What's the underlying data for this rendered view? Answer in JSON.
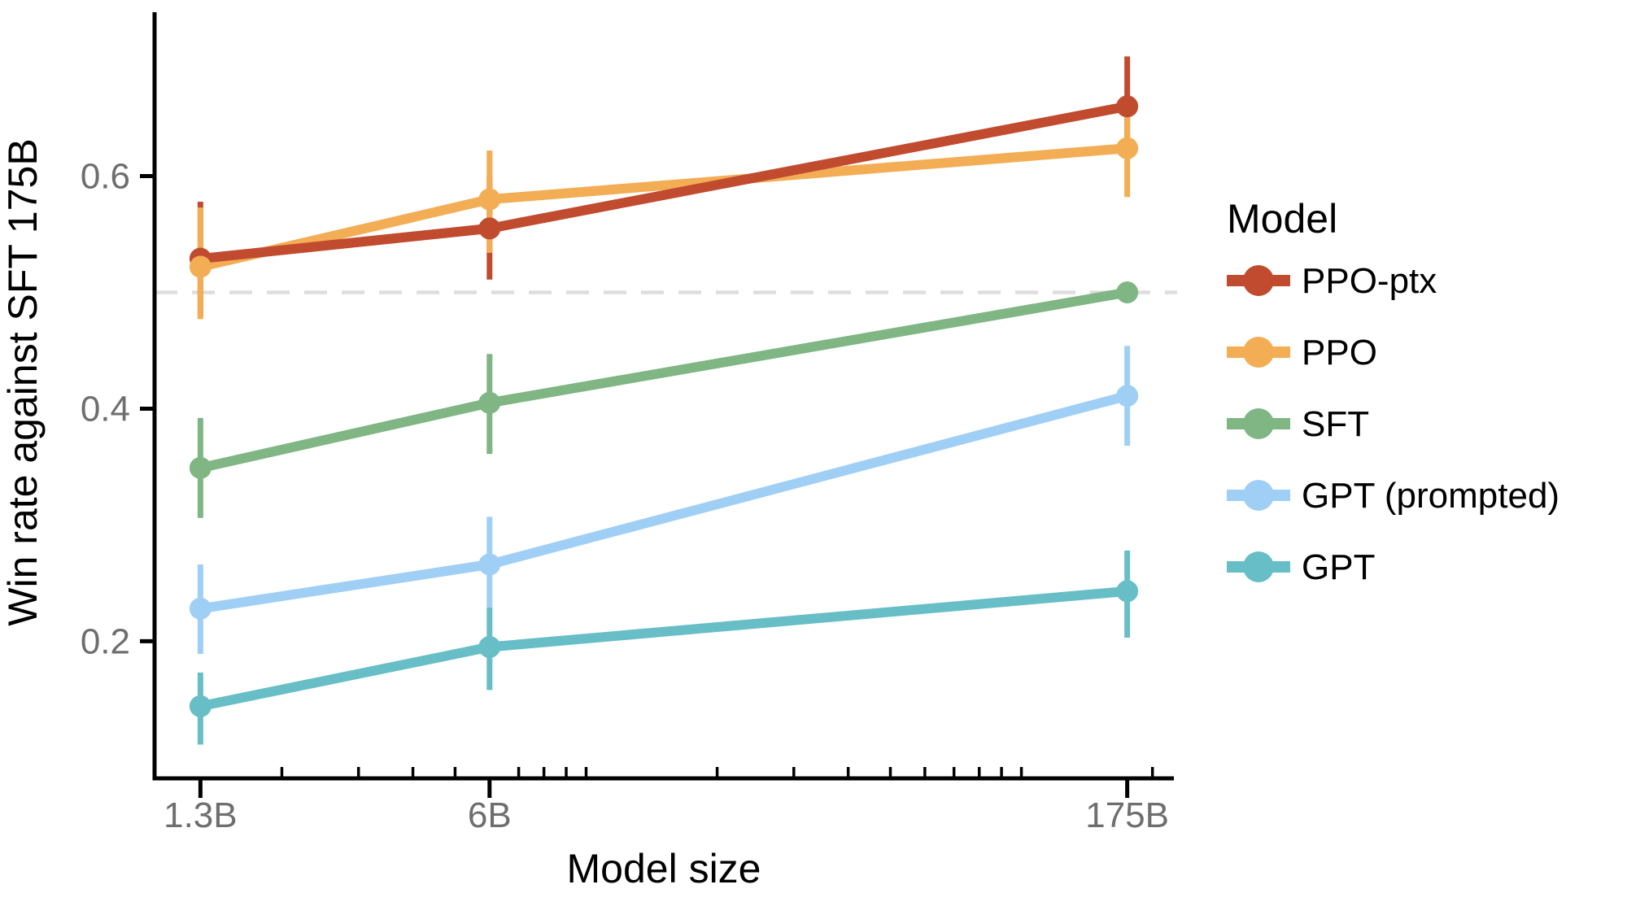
{
  "chart_data": {
    "type": "line",
    "title": "",
    "xlabel": "Model size",
    "ylabel": "Win rate against SFT 175B",
    "legend_title": "Model",
    "legend_position": "right",
    "x_scale": "log",
    "grid": "off",
    "x": [
      1.3,
      6,
      175
    ],
    "x_tick_labels": [
      "1.3B",
      "6B",
      "175B"
    ],
    "x_minor_ticks": [
      2,
      3,
      4,
      5,
      7,
      8,
      9,
      10,
      20,
      30,
      40,
      50,
      60,
      70,
      80,
      90,
      100,
      200
    ],
    "xlim": [
      1.02,
      224
    ],
    "ylim": [
      0.082,
      0.741
    ],
    "y_ticks": [
      0.2,
      0.4,
      0.6
    ],
    "baseline": {
      "value": 0.5,
      "style": "dashed",
      "color": "#DDDDDD"
    },
    "series": [
      {
        "name": "PPO-ptx",
        "color": "#C14B2F",
        "values": [
          0.529,
          0.555,
          0.66
        ],
        "err_lo": [
          0.48,
          0.511,
          0.615
        ],
        "err_hi": [
          0.578,
          0.6,
          0.703
        ]
      },
      {
        "name": "PPO",
        "color": "#F2AD55",
        "values": [
          0.522,
          0.58,
          0.624
        ],
        "err_lo": [
          0.477,
          0.534,
          0.582
        ],
        "err_hi": [
          0.573,
          0.622,
          0.669
        ]
      },
      {
        "name": "SFT",
        "color": "#7FB683",
        "values": [
          0.349,
          0.405,
          0.5
        ],
        "err_lo": [
          0.306,
          0.361,
          0.5
        ],
        "err_hi": [
          0.392,
          0.447,
          0.5
        ]
      },
      {
        "name": "GPT (prompted)",
        "color": "#A0CFF5",
        "values": [
          0.228,
          0.266,
          0.411
        ],
        "err_lo": [
          0.189,
          0.229,
          0.368
        ],
        "err_hi": [
          0.266,
          0.307,
          0.454
        ]
      },
      {
        "name": "GPT",
        "color": "#68BEC7",
        "values": [
          0.144,
          0.195,
          0.243
        ],
        "err_lo": [
          0.111,
          0.158,
          0.203
        ],
        "err_hi": [
          0.173,
          0.229,
          0.278
        ]
      }
    ],
    "text_colors": {
      "tick_labels": "#6E6E6E",
      "axis_titles": "#000000"
    }
  }
}
